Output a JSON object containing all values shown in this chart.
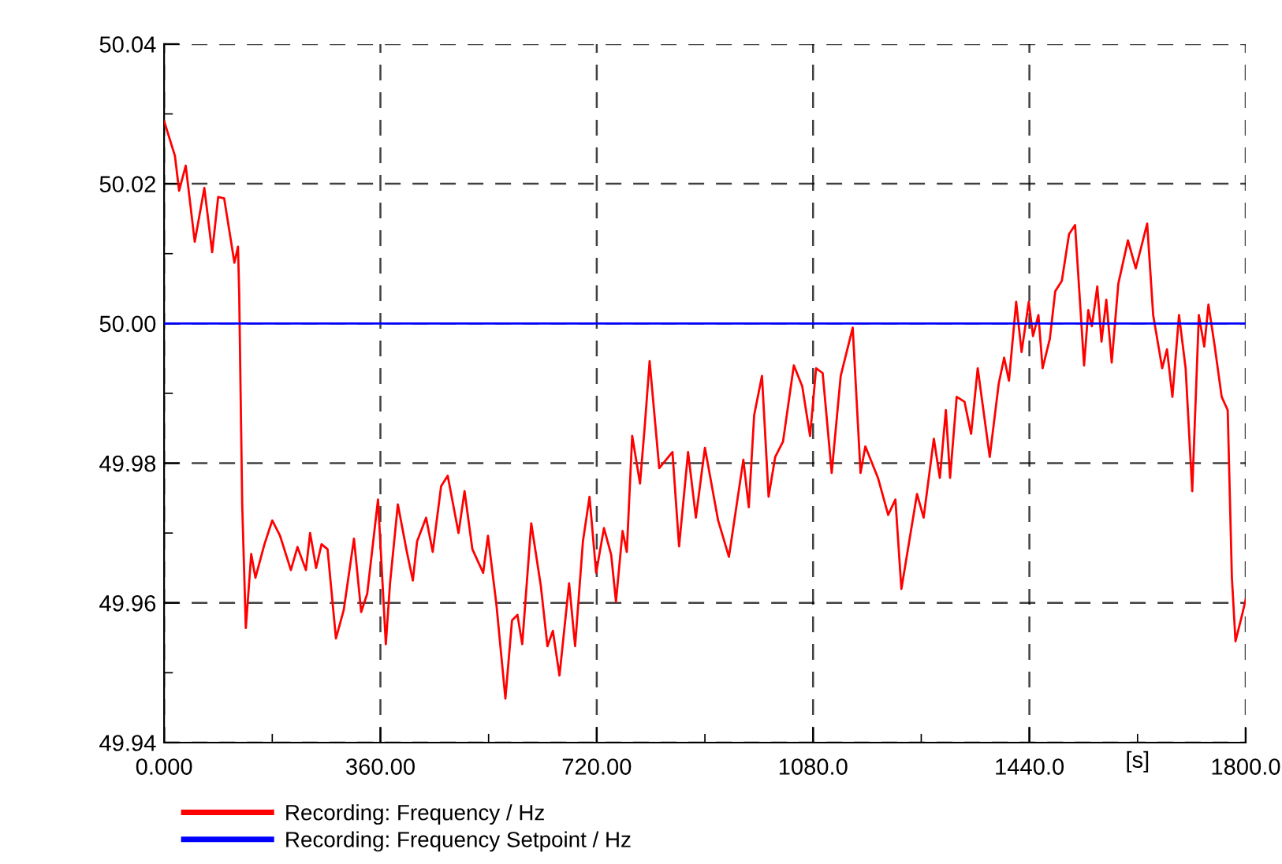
{
  "chart_data": {
    "type": "line",
    "xlabel": "[s]",
    "xlim": [
      0,
      1800
    ],
    "xticks": [
      {
        "value": 0,
        "label": "0.000"
      },
      {
        "value": 360,
        "label": "360.00"
      },
      {
        "value": 720,
        "label": "720.00"
      },
      {
        "value": 1080,
        "label": "1080.0"
      },
      {
        "value": 1440,
        "label": "1440.0"
      },
      {
        "value": 1800,
        "label": "1800.0"
      }
    ],
    "ylim": [
      49.94,
      50.04
    ],
    "yticks": [
      {
        "value": 49.94,
        "label": "49.94"
      },
      {
        "value": 49.96,
        "label": "49.96"
      },
      {
        "value": 49.98,
        "label": "49.98"
      },
      {
        "value": 50.0,
        "label": "50.00"
      },
      {
        "value": 50.02,
        "label": "50.02"
      },
      {
        "value": 50.04,
        "label": "50.04"
      }
    ],
    "grid": true,
    "legend": "bottom left",
    "line_style": "solid",
    "marker": "none",
    "series": [
      {
        "name": "Recording: Frequency / Hz",
        "color": "#ff0000",
        "x": [
          0,
          18,
          25,
          36,
          51,
          67,
          80,
          90,
          100,
          110,
          117,
          123,
          125,
          130,
          136,
          145,
          152,
          167,
          180,
          193,
          211,
          222,
          236,
          243,
          253,
          262,
          272,
          286,
          299,
          316,
          328,
          338,
          356,
          369,
          376,
          389,
          404,
          414,
          421,
          436,
          447,
          461,
          472,
          490,
          500,
          513,
          531,
          539,
          553,
          568,
          579,
          588,
          596,
          611,
          627,
          638,
          647,
          658,
          674,
          684,
          697,
          708,
          719,
          732,
          744,
          752,
          763,
          770,
          779,
          792,
          800,
          808,
          824,
          846,
          857,
          872,
          885,
          900,
          922,
          940,
          964,
          973,
          982,
          995,
          1006,
          1017,
          1030,
          1048,
          1062,
          1075,
          1085,
          1096,
          1111,
          1126,
          1146,
          1159,
          1167,
          1188,
          1205,
          1217,
          1227,
          1253,
          1264,
          1281,
          1291,
          1301,
          1308,
          1319,
          1332,
          1343,
          1354,
          1374,
          1389,
          1398,
          1406,
          1418,
          1427,
          1439,
          1446,
          1455,
          1462,
          1474,
          1483,
          1494,
          1506,
          1516,
          1531,
          1538,
          1544,
          1553,
          1560,
          1568,
          1577,
          1588,
          1604,
          1617,
          1626,
          1636,
          1646,
          1661,
          1669,
          1678,
          1689,
          1700,
          1711,
          1722,
          1731,
          1738,
          1748,
          1760,
          1770,
          1777,
          1783,
          1794,
          1800
        ],
        "values": [
          50.029,
          50.024,
          50.019,
          50.0226,
          50.0117,
          50.0194,
          50.0102,
          50.0181,
          50.0179,
          50.0125,
          50.0087,
          50.011,
          50.0042,
          49.974,
          49.9564,
          49.967,
          49.9636,
          49.9684,
          49.9718,
          49.9696,
          49.9647,
          49.968,
          49.9647,
          49.97,
          49.965,
          49.9684,
          49.9677,
          49.9549,
          49.959,
          49.9692,
          49.9587,
          49.9613,
          49.9748,
          49.9541,
          49.9628,
          49.9741,
          49.9673,
          49.9632,
          49.9688,
          49.9722,
          49.9673,
          49.9767,
          49.9782,
          49.97,
          49.976,
          49.9677,
          49.9643,
          49.9696,
          49.9598,
          49.9463,
          49.9575,
          49.9583,
          49.9541,
          49.9714,
          49.9624,
          49.9538,
          49.956,
          49.9496,
          49.9628,
          49.9538,
          49.9688,
          49.9752,
          49.9643,
          49.9707,
          49.9669,
          49.9602,
          49.9703,
          49.9673,
          49.9839,
          49.9771,
          49.9854,
          49.9946,
          49.9793,
          49.9816,
          49.9681,
          49.9816,
          49.9722,
          49.9822,
          49.9718,
          49.9666,
          49.9805,
          49.9737,
          49.9869,
          49.9925,
          49.9752,
          49.9809,
          49.9831,
          49.994,
          49.991,
          49.9839,
          49.9936,
          49.9929,
          49.9786,
          49.9925,
          49.9994,
          49.9786,
          49.9824,
          49.9779,
          49.9726,
          49.9748,
          49.962,
          49.9756,
          49.9722,
          49.9835,
          49.9779,
          49.9876,
          49.9779,
          49.9895,
          49.9888,
          49.9842,
          49.9936,
          49.9809,
          49.9914,
          49.9951,
          49.9918,
          50.0031,
          49.9959,
          50.0031,
          49.9982,
          50.0012,
          49.9936,
          49.9978,
          50.0046,
          50.0061,
          50.0128,
          50.0141,
          49.994,
          50.0019,
          49.9996,
          50.0053,
          49.9974,
          50.0034,
          49.9944,
          50.0057,
          50.0119,
          50.0079,
          50.0109,
          50.0143,
          50.0012,
          49.9936,
          49.9963,
          49.9895,
          50.0012,
          49.9936,
          49.976,
          50.0012,
          49.9967,
          50.0027,
          49.997,
          49.9895,
          49.9876,
          49.9636,
          49.9545,
          49.9583,
          49.9605
        ]
      },
      {
        "name": "Recording: Frequency Setpoint / Hz",
        "color": "#0000ff",
        "x": [
          0,
          1800
        ],
        "values": [
          50.0,
          50.0
        ]
      }
    ]
  }
}
